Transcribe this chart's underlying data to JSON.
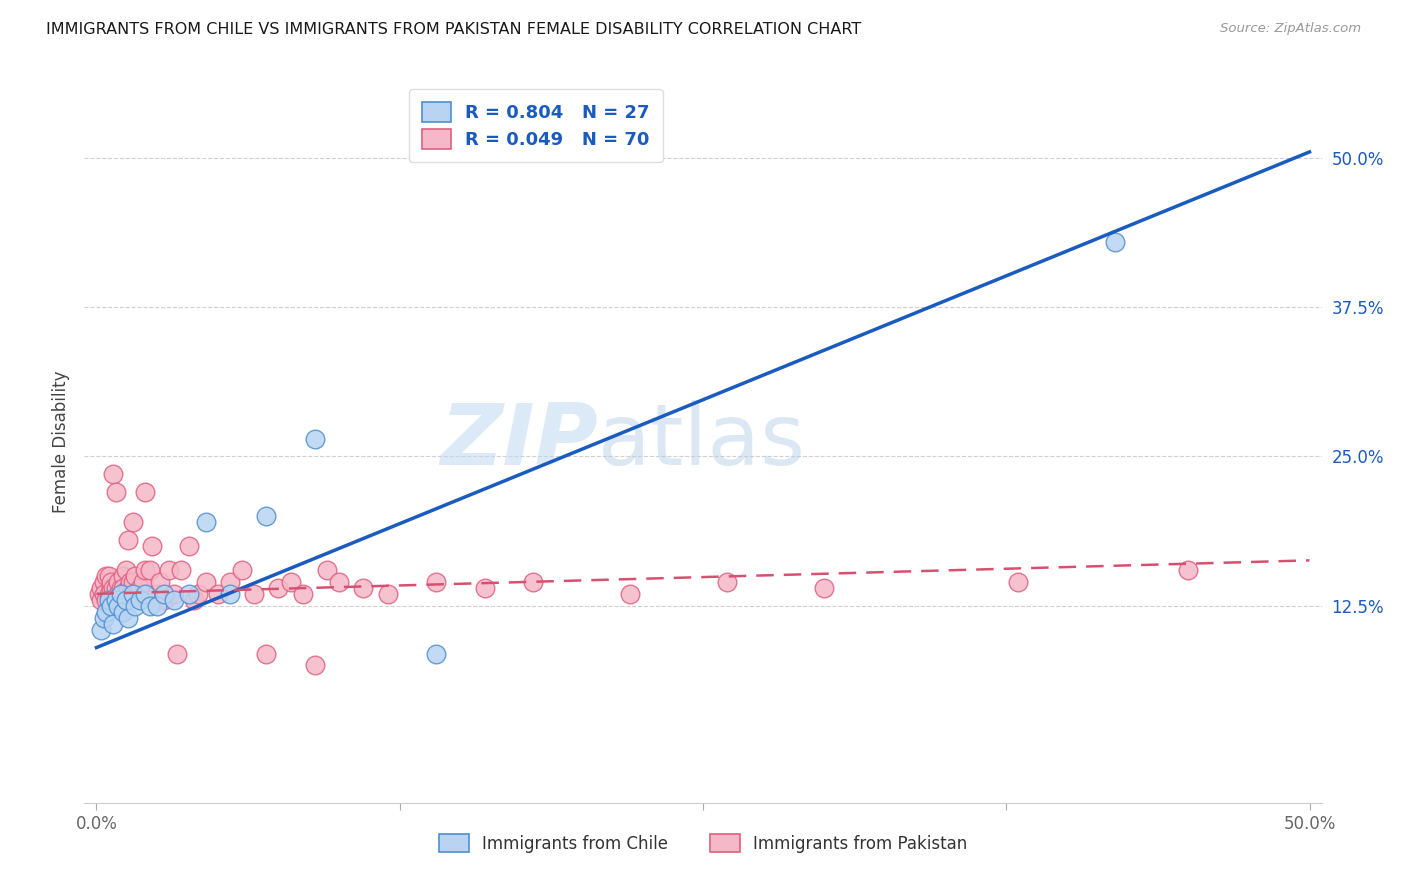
{
  "title": "IMMIGRANTS FROM CHILE VS IMMIGRANTS FROM PAKISTAN FEMALE DISABILITY CORRELATION CHART",
  "source": "Source: ZipAtlas.com",
  "ylabel": "Female Disability",
  "xlim": [
    -0.005,
    0.505
  ],
  "ylim": [
    -0.04,
    0.565
  ],
  "xtick_positions": [
    0.0,
    0.125,
    0.25,
    0.375,
    0.5
  ],
  "xtick_labels": [
    "0.0%",
    "",
    "",
    "",
    "50.0%"
  ],
  "ytick_right_positions": [
    0.125,
    0.25,
    0.375,
    0.5
  ],
  "ytick_right_labels": [
    "12.5%",
    "25.0%",
    "37.5%",
    "50.0%"
  ],
  "watermark_zip": "ZIP",
  "watermark_atlas": "atlas",
  "chile_color": "#b8d4f2",
  "chile_edge_color": "#5090d0",
  "pakistan_color": "#f5b8c8",
  "pakistan_edge_color": "#e06080",
  "trendline_chile_color": "#1a5bbf",
  "trendline_pakistan_color": "#d85070",
  "legend_R_chile": "0.804",
  "legend_N_chile": "27",
  "legend_R_pakistan": "0.049",
  "legend_N_pakistan": "70",
  "legend_label_chile": "Immigrants from Chile",
  "legend_label_pakistan": "Immigrants from Pakistan",
  "chile_x": [
    0.002,
    0.003,
    0.004,
    0.005,
    0.006,
    0.007,
    0.008,
    0.009,
    0.01,
    0.011,
    0.012,
    0.013,
    0.015,
    0.016,
    0.018,
    0.02,
    0.022,
    0.025,
    0.028,
    0.032,
    0.038,
    0.045,
    0.055,
    0.07,
    0.09,
    0.14,
    0.42
  ],
  "chile_y": [
    0.105,
    0.115,
    0.12,
    0.13,
    0.125,
    0.11,
    0.13,
    0.125,
    0.135,
    0.12,
    0.13,
    0.115,
    0.135,
    0.125,
    0.13,
    0.135,
    0.125,
    0.125,
    0.135,
    0.13,
    0.135,
    0.195,
    0.135,
    0.2,
    0.265,
    0.085,
    0.43
  ],
  "pakistan_x": [
    0.001,
    0.002,
    0.002,
    0.003,
    0.003,
    0.004,
    0.004,
    0.005,
    0.005,
    0.006,
    0.006,
    0.007,
    0.007,
    0.007,
    0.008,
    0.008,
    0.009,
    0.009,
    0.01,
    0.01,
    0.011,
    0.011,
    0.012,
    0.012,
    0.013,
    0.013,
    0.014,
    0.014,
    0.015,
    0.015,
    0.016,
    0.017,
    0.018,
    0.019,
    0.02,
    0.02,
    0.022,
    0.023,
    0.025,
    0.026,
    0.028,
    0.03,
    0.032,
    0.033,
    0.035,
    0.038,
    0.04,
    0.042,
    0.045,
    0.05,
    0.055,
    0.06,
    0.065,
    0.07,
    0.075,
    0.08,
    0.085,
    0.09,
    0.095,
    0.1,
    0.11,
    0.12,
    0.14,
    0.16,
    0.18,
    0.22,
    0.26,
    0.3,
    0.38,
    0.45
  ],
  "pakistan_y": [
    0.135,
    0.13,
    0.14,
    0.145,
    0.135,
    0.15,
    0.13,
    0.15,
    0.135,
    0.14,
    0.145,
    0.135,
    0.14,
    0.235,
    0.14,
    0.22,
    0.135,
    0.145,
    0.14,
    0.13,
    0.15,
    0.14,
    0.155,
    0.135,
    0.14,
    0.18,
    0.135,
    0.145,
    0.145,
    0.195,
    0.15,
    0.135,
    0.14,
    0.145,
    0.155,
    0.22,
    0.155,
    0.175,
    0.135,
    0.145,
    0.13,
    0.155,
    0.135,
    0.085,
    0.155,
    0.175,
    0.13,
    0.135,
    0.145,
    0.135,
    0.145,
    0.155,
    0.135,
    0.085,
    0.14,
    0.145,
    0.135,
    0.075,
    0.155,
    0.145,
    0.14,
    0.135,
    0.145,
    0.14,
    0.145,
    0.135,
    0.145,
    0.14,
    0.145,
    0.155
  ],
  "chile_trendline_x0": 0.0,
  "chile_trendline_y0": 0.09,
  "chile_trendline_x1": 0.5,
  "chile_trendline_y1": 0.505,
  "pakistan_trendline_x0": 0.0,
  "pakistan_trendline_y0": 0.135,
  "pakistan_trendline_x1": 0.5,
  "pakistan_trendline_y1": 0.163
}
